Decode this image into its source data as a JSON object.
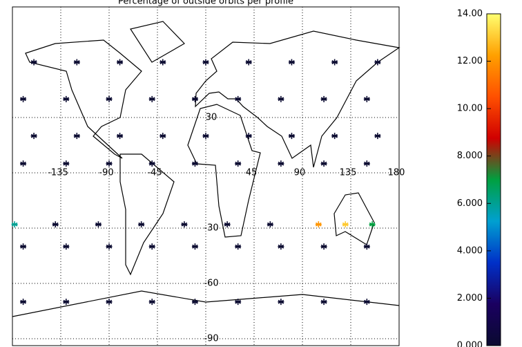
{
  "chart_data": {
    "type": "scatter",
    "title": "Percentage of outside orbits per profile",
    "x": [
      -160,
      -120,
      -80,
      -40,
      0,
      40,
      80,
      120,
      160,
      -170,
      -130,
      -90,
      -50,
      -10,
      30,
      70,
      110,
      150,
      -160,
      -120,
      -80,
      -40,
      0,
      40,
      80,
      120,
      160,
      -170,
      -130,
      -90,
      -50,
      -10,
      30,
      70,
      110,
      150,
      -178,
      -140,
      -100,
      -60,
      -20,
      20,
      60,
      105,
      130,
      155,
      -170,
      -130,
      -90,
      -50,
      -10,
      30,
      70,
      110,
      150,
      -170,
      -130,
      -90,
      -50,
      -10,
      30,
      70,
      110,
      150
    ],
    "y": [
      60,
      60,
      60,
      60,
      60,
      60,
      60,
      60,
      60,
      40,
      40,
      40,
      40,
      40,
      40,
      40,
      40,
      40,
      20,
      20,
      20,
      20,
      20,
      20,
      20,
      20,
      20,
      5,
      5,
      5,
      5,
      5,
      5,
      5,
      5,
      5,
      -28,
      -28,
      -28,
      -28,
      -28,
      -28,
      -28,
      -28,
      -28,
      -28,
      -40,
      -40,
      -40,
      -40,
      -40,
      -40,
      -40,
      -40,
      -40,
      -70,
      -70,
      -70,
      -70,
      -70,
      -70,
      -70,
      -70,
      -70
    ],
    "values": [
      0,
      0,
      0,
      0,
      0,
      0,
      0,
      0,
      0,
      0,
      0,
      0,
      0,
      0,
      0,
      0,
      0,
      0,
      0,
      0,
      0,
      0,
      0,
      0,
      0,
      0,
      0,
      0,
      0,
      0,
      0,
      0,
      0,
      0,
      0,
      0,
      6,
      0,
      0,
      0,
      0,
      0,
      0,
      12,
      13,
      7,
      0,
      0,
      0,
      0,
      0,
      0,
      0,
      0,
      0,
      0,
      0,
      0,
      0,
      0,
      0,
      0,
      0,
      0
    ],
    "xlim": [
      -180,
      180
    ],
    "ylim": [
      -90,
      90
    ],
    "xticks": [
      -135,
      -90,
      -45,
      45,
      90,
      135,
      180
    ],
    "yticks": [
      -90,
      -60,
      -30,
      30
    ],
    "grid": true,
    "colorbar": {
      "lim": [
        0,
        14
      ],
      "ticks": [
        {
          "value": 0,
          "label": "0.000"
        },
        {
          "value": 2,
          "label": "2.000"
        },
        {
          "value": 4,
          "label": "4.000"
        },
        {
          "value": 6,
          "label": "6.000"
        },
        {
          "value": 8,
          "label": "8.000"
        },
        {
          "value": 10,
          "label": "10.00"
        },
        {
          "value": 12,
          "label": "12.00"
        },
        {
          "value": 14,
          "label": "14.00"
        }
      ],
      "colors": [
        "#0a0a30",
        "#1a0060",
        "#0030c8",
        "#00a0d0",
        "#00a040",
        "#d00000",
        "#ff5000",
        "#ffa000",
        "#ffff70"
      ]
    }
  }
}
